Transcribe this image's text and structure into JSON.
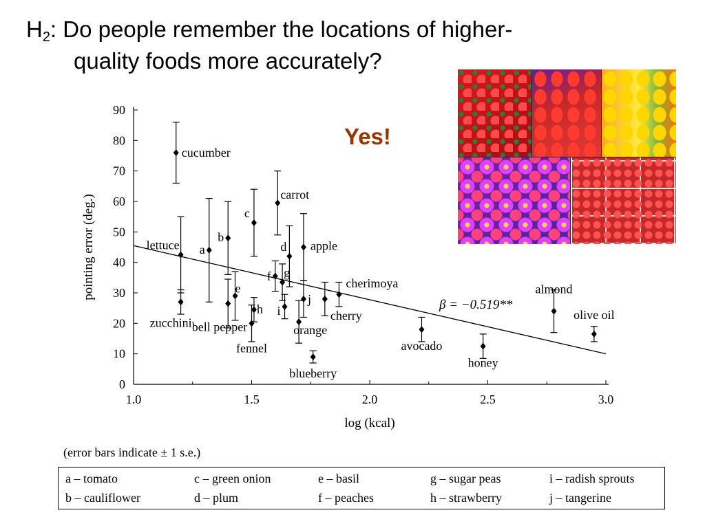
{
  "slide": {
    "title_prefix": "H",
    "title_subscript": "2",
    "title_line1": ": Do people remember the locations of higher-",
    "title_line2": "quality foods more accurately?",
    "answer": "Yes!",
    "answer_color": "#993300",
    "error_note": "(error bars indicate ± 1 s.e.)"
  },
  "photo_collage": {
    "tiles": [
      "strawberries",
      "red peppers",
      "yellow and orange peppers",
      "purple and pink asters",
      "cherry tomatoes"
    ]
  },
  "chart_data": {
    "type": "scatter",
    "xlabel": "log (kcal)",
    "ylabel": "pointing error (deg.)",
    "xlim": [
      1.0,
      3.0
    ],
    "ylim": [
      0,
      90
    ],
    "x_ticks": [
      "1.0",
      "1.5",
      "2.0",
      "2.5",
      "3.0"
    ],
    "y_ticks": [
      "0",
      "10",
      "20",
      "30",
      "40",
      "50",
      "60",
      "70",
      "80",
      "90"
    ],
    "grid": false,
    "regression": {
      "x": [
        1.0,
        3.0
      ],
      "y": [
        45.5,
        10
      ],
      "label": "β = −0.519**"
    },
    "points": [
      {
        "label": "cucumber",
        "x": 1.18,
        "y": 76,
        "err": 10
      },
      {
        "label": "lettuce",
        "x": 1.2,
        "y": 42.5,
        "err": 12.5
      },
      {
        "label": "zucchini",
        "x": 1.2,
        "y": 27,
        "err": 4
      },
      {
        "label": "a",
        "x": 1.32,
        "y": 44,
        "err": 17
      },
      {
        "label": "b",
        "x": 1.4,
        "y": 48,
        "err": 12
      },
      {
        "label": "bell pepper",
        "x": 1.4,
        "y": 26.5,
        "err": 8
      },
      {
        "label": "e",
        "x": 1.43,
        "y": 29,
        "err": 8
      },
      {
        "label": "c",
        "x": 1.51,
        "y": 53,
        "err": 11
      },
      {
        "label": "fennel",
        "x": 1.5,
        "y": 20,
        "err": 6
      },
      {
        "label": "h",
        "x": 1.51,
        "y": 24.5,
        "err": 4
      },
      {
        "label": "carrot",
        "x": 1.61,
        "y": 59.5,
        "err": 10.5
      },
      {
        "label": "f",
        "x": 1.6,
        "y": 35.5,
        "err": 5
      },
      {
        "label": "g",
        "x": 1.63,
        "y": 33.5,
        "err": 6
      },
      {
        "label": "i",
        "x": 1.64,
        "y": 25.5,
        "err": 4
      },
      {
        "label": "d",
        "x": 1.66,
        "y": 42,
        "err": 10
      },
      {
        "label": "apple",
        "x": 1.72,
        "y": 45,
        "err": 11
      },
      {
        "label": "j",
        "x": 1.72,
        "y": 28,
        "err": 6
      },
      {
        "label": "orange",
        "x": 1.7,
        "y": 20.5,
        "err": 7
      },
      {
        "label": "blueberry",
        "x": 1.76,
        "y": 9,
        "err": 2
      },
      {
        "label": "cherry",
        "x": 1.81,
        "y": 28,
        "err": 5.5
      },
      {
        "label": "cherimoya",
        "x": 1.87,
        "y": 29.5,
        "err": 4
      },
      {
        "label": "avocado",
        "x": 2.22,
        "y": 18,
        "err": 4
      },
      {
        "label": "honey",
        "x": 2.48,
        "y": 12.5,
        "err": 4
      },
      {
        "label": "almond",
        "x": 2.78,
        "y": 24,
        "err": 7
      },
      {
        "label": "olive oil",
        "x": 2.95,
        "y": 16.5,
        "err": 2.5
      }
    ]
  },
  "key_table": {
    "entries": [
      "a – tomato",
      "b – cauliflower",
      "c – green onion",
      "d – plum",
      "e – basil",
      "f – peaches",
      "g – sugar peas",
      "h – strawberry",
      "i – radish sprouts",
      "j – tangerine"
    ]
  }
}
